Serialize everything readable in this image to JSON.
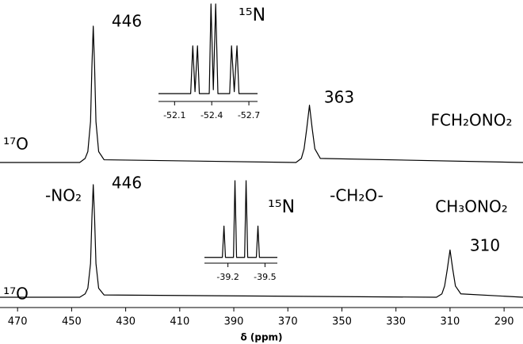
{
  "chart_data": [
    {
      "type": "line",
      "xlabel": "δ (ppm)",
      "xlim": [
        476.5,
        283
      ],
      "ylim": [
        0,
        100
      ],
      "xticks": [
        470,
        450,
        430,
        410,
        390,
        370,
        350,
        330,
        310,
        290
      ],
      "annotations": [
        "446",
        "363",
        "FCH₂ONO₂",
        "¹⁷O",
        "446",
        "-NO₂",
        "-CH₂O-",
        "CH₃ONO₂",
        "310",
        "¹⁷O"
      ],
      "series": [
        {
          "color": "#000000",
          "x": [
            477,
            447,
            445,
            444,
            443,
            442.5,
            442,
            441.5,
            441,
            440,
            438,
            367,
            365,
            364,
            363,
            362,
            361,
            360,
            358,
            283
          ],
          "values": [
            0,
            0,
            3,
            8,
            30,
            70,
            100,
            70,
            30,
            8,
            2,
            0,
            3,
            10,
            25,
            42,
            25,
            10,
            3,
            0
          ]
        },
        {
          "color": "#000000",
          "x": [
            477,
            447,
            445,
            444,
            443,
            442.5,
            442,
            441.5,
            441,
            440,
            438,
            315,
            313,
            312,
            311,
            310,
            309,
            308,
            306,
            283
          ],
          "values": [
            0,
            0,
            3,
            8,
            30,
            70,
            100,
            70,
            30,
            8,
            2,
            0,
            3,
            10,
            25,
            42,
            25,
            10,
            3,
            0
          ]
        }
      ]
    },
    {
      "type": "line",
      "label": "¹⁵N",
      "xlim": [
        -51.97,
        -52.77
      ],
      "ylim": [
        0,
        100
      ],
      "xticks": [
        -52.1,
        -52.4,
        -52.7
      ],
      "series": [
        {
          "color": "#000000",
          "x": [
            -51.97,
            -52.23,
            -52.247,
            -52.265,
            -52.285,
            -52.3,
            -52.38,
            -52.394,
            -52.413,
            -52.432,
            -52.45,
            -52.545,
            -52.56,
            -52.582,
            -52.604,
            -52.62,
            -52.77
          ],
          "values": [
            8,
            8,
            57,
            10,
            57,
            8,
            8,
            100,
            12,
            100,
            8,
            8,
            57,
            10,
            57,
            8,
            8
          ]
        }
      ]
    },
    {
      "type": "line",
      "label": "¹⁵N",
      "xlim": [
        -39.01,
        -39.6
      ],
      "ylim": [
        0,
        100
      ],
      "xticks": [
        -39.2,
        -39.5
      ],
      "series": [
        {
          "color": "#000000",
          "x": [
            -39.01,
            -39.155,
            -39.168,
            -39.18,
            -39.245,
            -39.257,
            -39.27,
            -39.335,
            -39.347,
            -39.36,
            -39.43,
            -39.443,
            -39.455,
            -39.6
          ],
          "values": [
            7,
            7,
            45,
            7,
            7,
            100,
            7,
            7,
            100,
            7,
            7,
            45,
            7,
            7
          ]
        }
      ]
    }
  ]
}
